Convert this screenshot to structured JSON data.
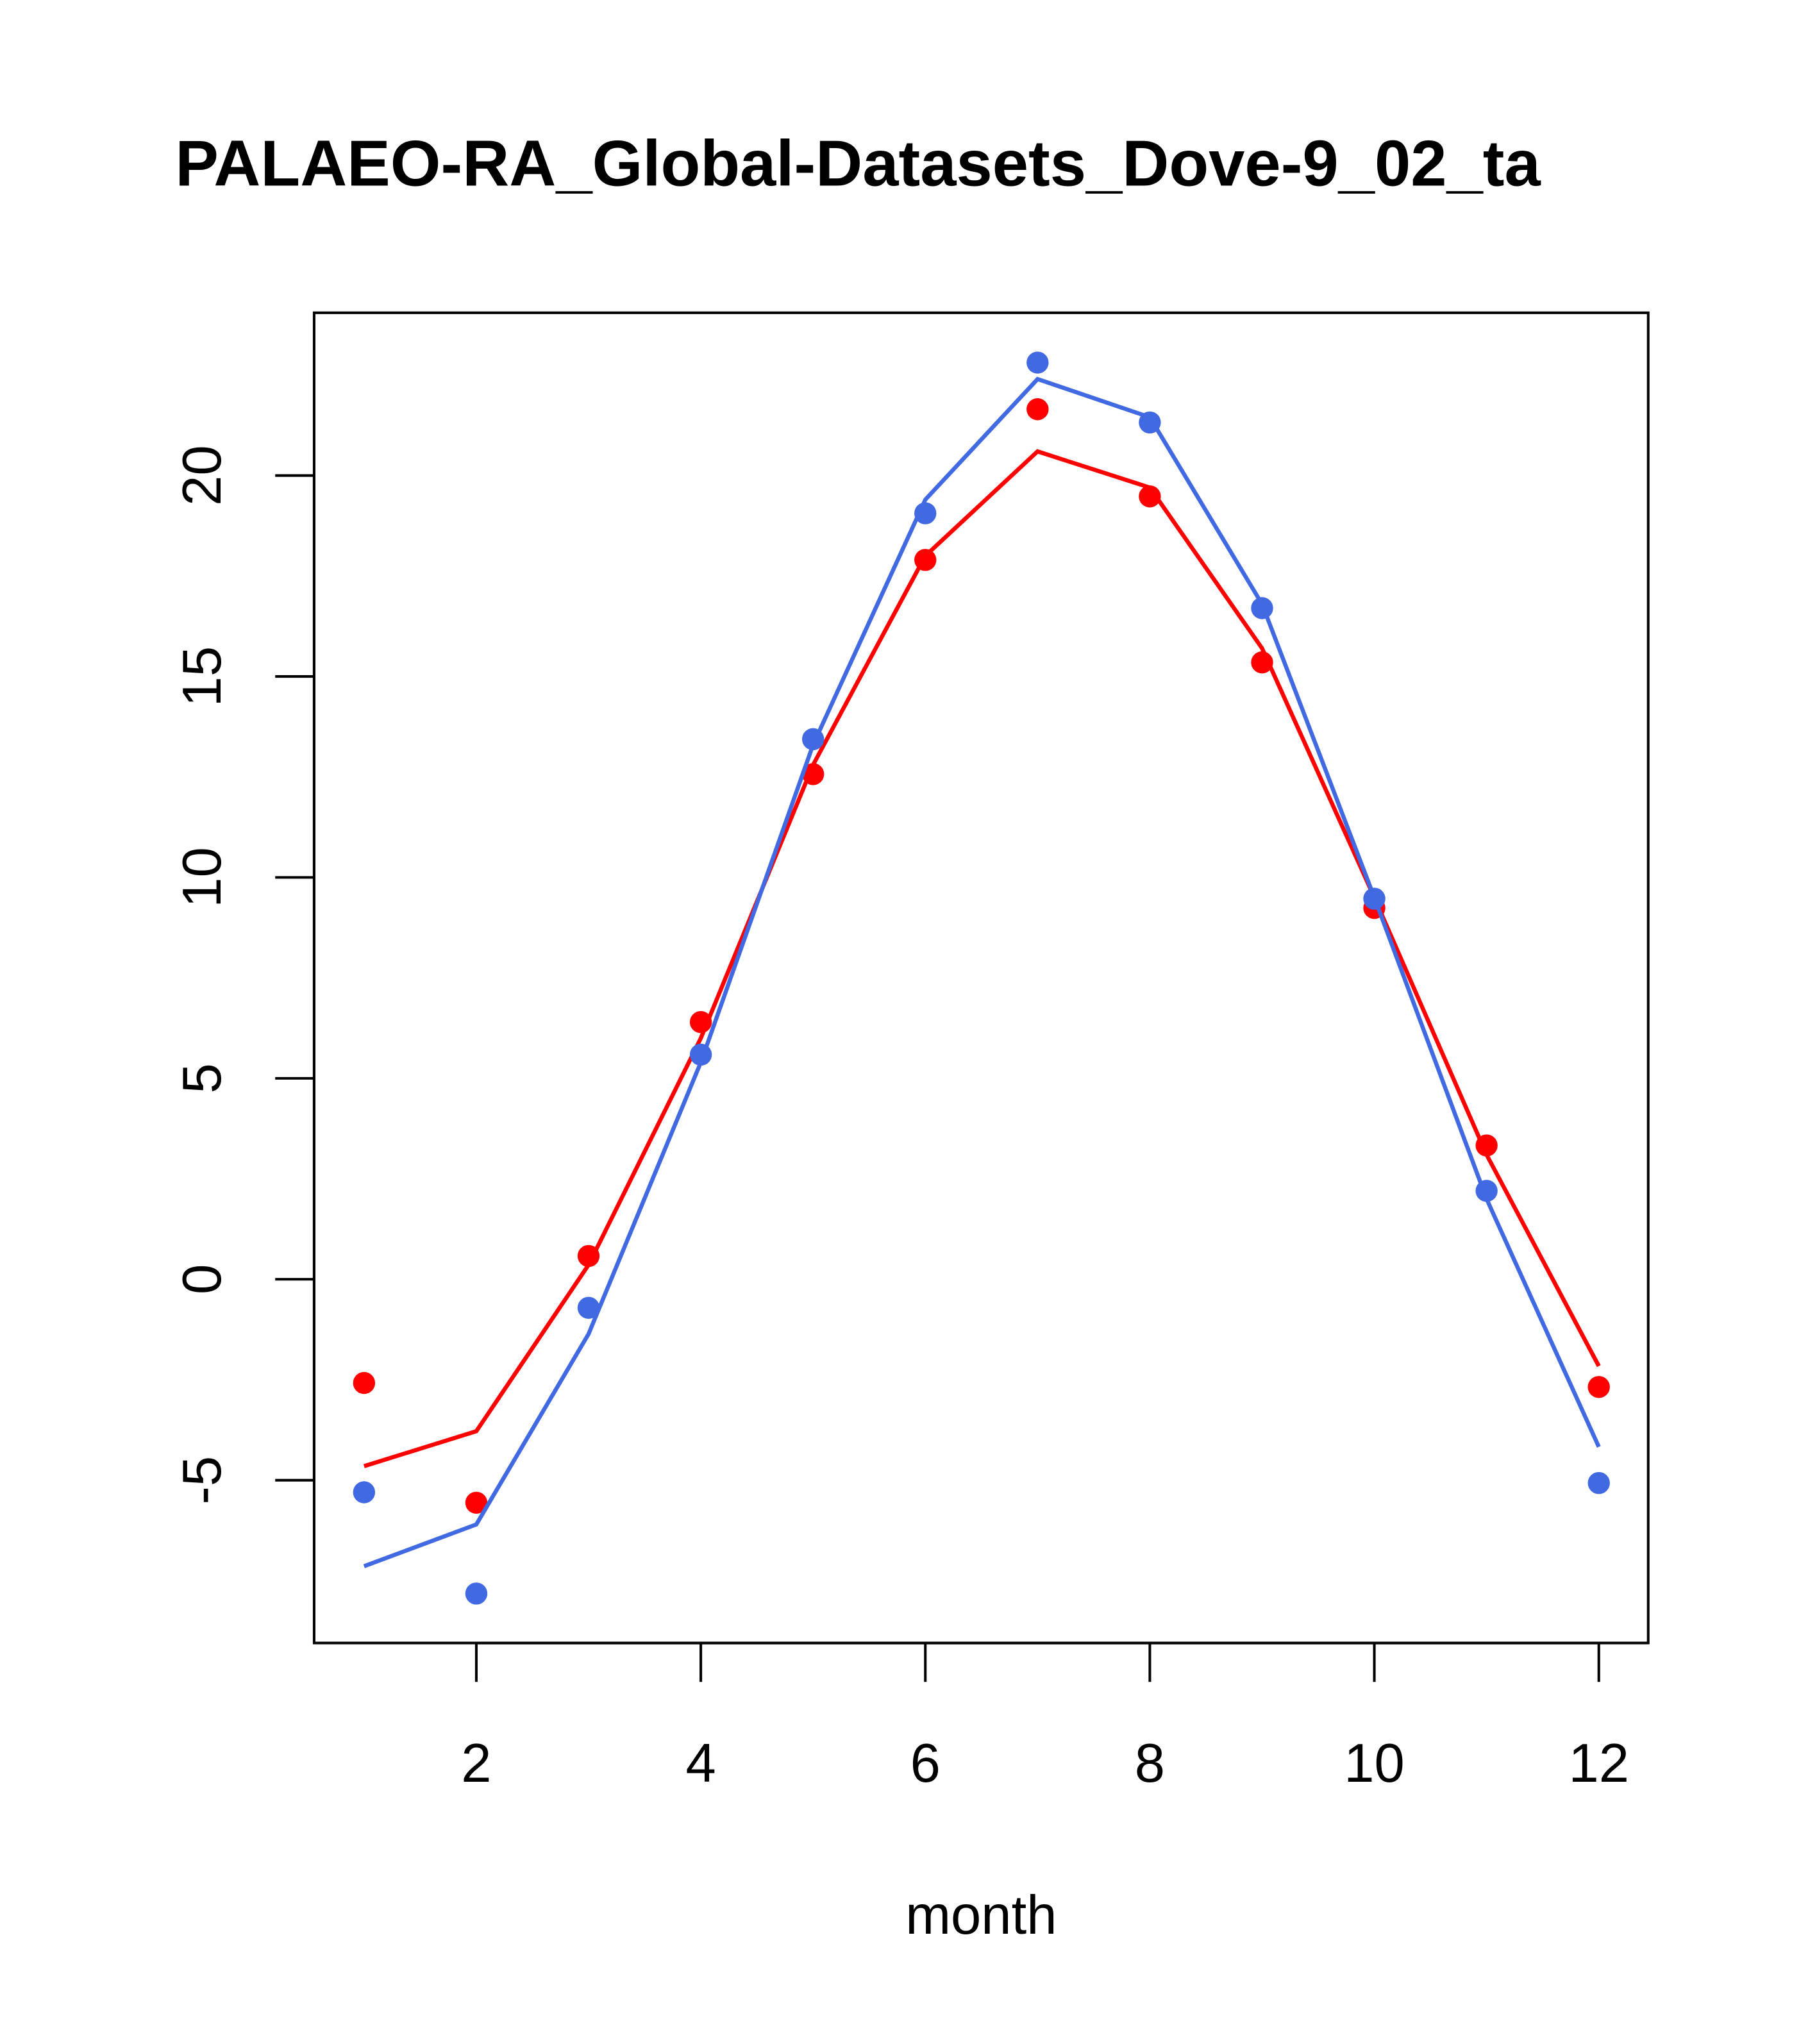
{
  "chart_data": {
    "type": "line",
    "title": "PALAEO-RA_Global-Datasets_Dove-9_02_ta",
    "xlabel": "month",
    "ylabel": "",
    "xlim": [
      0.555,
      12.44
    ],
    "ylim": [
      -9.05,
      24.05
    ],
    "x_ticks": [
      2,
      4,
      6,
      8,
      10,
      12
    ],
    "y_ticks": [
      -5,
      0,
      5,
      10,
      15,
      20
    ],
    "grid": false,
    "x": [
      1,
      2,
      3,
      4,
      5,
      6,
      7,
      8,
      9,
      10,
      11,
      12
    ],
    "series": [
      {
        "name": "red points",
        "kind": "points",
        "color": "#ff0000",
        "values": [
          -2.58,
          -5.56,
          0.58,
          6.4,
          12.57,
          17.9,
          21.65,
          19.48,
          15.35,
          9.24,
          3.33,
          -2.68
        ]
      },
      {
        "name": "red line",
        "kind": "line",
        "color": "#ff0000",
        "values": [
          -4.65,
          -3.78,
          0.36,
          6.0,
          12.8,
          18.0,
          20.6,
          19.7,
          15.7,
          9.5,
          3.1,
          -2.16
        ]
      },
      {
        "name": "blue points",
        "kind": "points",
        "color": "#4169e1",
        "values": [
          -5.3,
          -7.82,
          -0.71,
          5.59,
          13.44,
          19.06,
          22.81,
          21.32,
          16.7,
          9.47,
          2.2,
          -5.07
        ]
      },
      {
        "name": "blue line",
        "kind": "line",
        "color": "#4169e1",
        "values": [
          -7.14,
          -6.1,
          -1.36,
          5.4,
          13.3,
          19.4,
          22.4,
          21.45,
          16.8,
          9.5,
          2.0,
          -4.17
        ]
      }
    ]
  }
}
